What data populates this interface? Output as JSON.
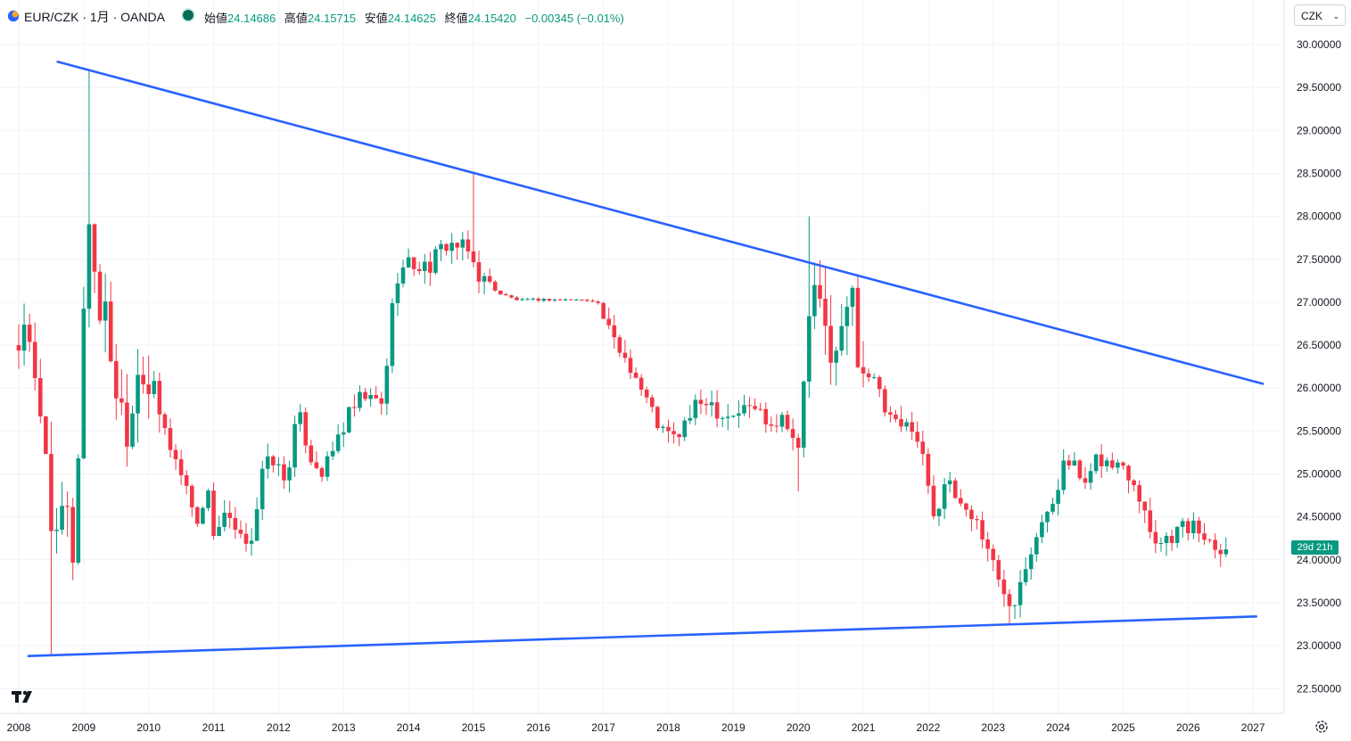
{
  "header": {
    "symbol": "EUR/CZK · 1月 · OANDA",
    "open_label": "始値",
    "open_value": "24.14686",
    "high_label": "高値",
    "high_value": "24.15715",
    "low_label": "安値",
    "low_value": "24.14625",
    "close_label": "終値",
    "close_value": "24.15420",
    "change": "−0.00345 (−0.01%)"
  },
  "currency": "CZK",
  "countdown": "29d 21h",
  "colors": {
    "up": "#089981",
    "down": "#f23645",
    "trendline": "#2962ff",
    "grid": "#f0f3fa"
  },
  "chart_data": {
    "type": "candlestick",
    "interval": "1M",
    "ylim": [
      22.2,
      30.2
    ],
    "y_ticks": [
      "22.50000",
      "23.00000",
      "23.50000",
      "24.00000",
      "24.50000",
      "25.00000",
      "25.50000",
      "26.00000",
      "26.50000",
      "27.00000",
      "27.50000",
      "28.00000",
      "28.50000",
      "29.00000",
      "29.50000",
      "30.00000"
    ],
    "x_ticks": [
      "2008",
      "2009",
      "2010",
      "2011",
      "2012",
      "2013",
      "2014",
      "2015",
      "2016",
      "2017",
      "2018",
      "2019",
      "2020",
      "2021",
      "2022",
      "2023",
      "2024",
      "2025",
      "2026",
      "2027"
    ],
    "anchors": [
      {
        "t": 2008.0,
        "v": 26.5
      },
      {
        "t": 2008.05,
        "v": 27.0
      },
      {
        "t": 2008.2,
        "v": 26.2
      },
      {
        "t": 2008.3,
        "v": 25.7
      },
      {
        "t": 2008.45,
        "v": 25.2
      },
      {
        "t": 2008.55,
        "v": 23.9
      },
      {
        "t": 2008.7,
        "v": 24.7
      },
      {
        "t": 2008.85,
        "v": 24.0
      },
      {
        "t": 2009.0,
        "v": 26.9
      },
      {
        "t": 2009.1,
        "v": 28.2
      },
      {
        "t": 2009.2,
        "v": 27.0
      },
      {
        "t": 2009.35,
        "v": 26.8
      },
      {
        "t": 2009.5,
        "v": 26.0
      },
      {
        "t": 2009.7,
        "v": 25.5
      },
      {
        "t": 2009.85,
        "v": 26.4
      },
      {
        "t": 2010.0,
        "v": 26.0
      },
      {
        "t": 2010.2,
        "v": 25.6
      },
      {
        "t": 2010.4,
        "v": 25.2
      },
      {
        "t": 2010.6,
        "v": 24.8
      },
      {
        "t": 2010.8,
        "v": 24.4
      },
      {
        "t": 2010.95,
        "v": 25.0
      },
      {
        "t": 2011.0,
        "v": 24.3
      },
      {
        "t": 2011.2,
        "v": 24.5
      },
      {
        "t": 2011.4,
        "v": 24.2
      },
      {
        "t": 2011.6,
        "v": 24.3
      },
      {
        "t": 2011.75,
        "v": 25.0
      },
      {
        "t": 2011.9,
        "v": 25.2
      },
      {
        "t": 2012.1,
        "v": 24.9
      },
      {
        "t": 2012.3,
        "v": 25.7
      },
      {
        "t": 2012.5,
        "v": 25.2
      },
      {
        "t": 2012.7,
        "v": 25.0
      },
      {
        "t": 2012.9,
        "v": 25.4
      },
      {
        "t": 2013.1,
        "v": 25.7
      },
      {
        "t": 2013.3,
        "v": 25.9
      },
      {
        "t": 2013.6,
        "v": 25.8
      },
      {
        "t": 2013.8,
        "v": 27.3
      },
      {
        "t": 2014.0,
        "v": 27.45
      },
      {
        "t": 2014.3,
        "v": 27.4
      },
      {
        "t": 2014.6,
        "v": 27.7
      },
      {
        "t": 2014.9,
        "v": 27.6
      },
      {
        "t": 2015.1,
        "v": 27.3
      },
      {
        "t": 2015.4,
        "v": 27.1
      },
      {
        "t": 2015.7,
        "v": 27.02
      },
      {
        "t": 2016.0,
        "v": 27.03
      },
      {
        "t": 2016.5,
        "v": 27.03
      },
      {
        "t": 2016.9,
        "v": 27.02
      },
      {
        "t": 2017.1,
        "v": 26.6
      },
      {
        "t": 2017.4,
        "v": 26.3
      },
      {
        "t": 2017.7,
        "v": 25.8
      },
      {
        "t": 2017.9,
        "v": 25.5
      },
      {
        "t": 2018.1,
        "v": 25.4
      },
      {
        "t": 2018.35,
        "v": 25.7
      },
      {
        "t": 2018.6,
        "v": 25.9
      },
      {
        "t": 2018.8,
        "v": 25.7
      },
      {
        "t": 2019.0,
        "v": 25.7
      },
      {
        "t": 2019.3,
        "v": 25.8
      },
      {
        "t": 2019.6,
        "v": 25.6
      },
      {
        "t": 2019.8,
        "v": 25.7
      },
      {
        "t": 2020.0,
        "v": 25.25
      },
      {
        "t": 2020.2,
        "v": 27.2
      },
      {
        "t": 2020.35,
        "v": 26.8
      },
      {
        "t": 2020.6,
        "v": 26.3
      },
      {
        "t": 2020.8,
        "v": 27.2
      },
      {
        "t": 2020.95,
        "v": 26.3
      },
      {
        "t": 2021.15,
        "v": 26.1
      },
      {
        "t": 2021.35,
        "v": 25.7
      },
      {
        "t": 2021.55,
        "v": 25.5
      },
      {
        "t": 2021.75,
        "v": 25.6
      },
      {
        "t": 2021.95,
        "v": 25.1
      },
      {
        "t": 2022.1,
        "v": 24.5
      },
      {
        "t": 2022.25,
        "v": 24.9
      },
      {
        "t": 2022.45,
        "v": 24.7
      },
      {
        "t": 2022.7,
        "v": 24.5
      },
      {
        "t": 2022.9,
        "v": 24.2
      },
      {
        "t": 2023.1,
        "v": 23.7
      },
      {
        "t": 2023.3,
        "v": 23.5
      },
      {
        "t": 2023.55,
        "v": 24.1
      },
      {
        "t": 2023.75,
        "v": 24.5
      },
      {
        "t": 2023.95,
        "v": 24.6
      },
      {
        "t": 2024.1,
        "v": 25.3
      },
      {
        "t": 2024.3,
        "v": 25.0
      },
      {
        "t": 2024.45,
        "v": 24.8
      },
      {
        "t": 2024.6,
        "v": 25.2
      },
      {
        "t": 2024.8,
        "v": 25.1
      },
      {
        "t": 2025.0,
        "v": 25.1
      },
      {
        "t": 2025.2,
        "v": 24.9
      },
      {
        "t": 2025.4,
        "v": 24.4
      },
      {
        "t": 2025.55,
        "v": 24.2
      },
      {
        "t": 2025.75,
        "v": 24.3
      },
      {
        "t": 2025.95,
        "v": 24.4
      },
      {
        "t": 2026.15,
        "v": 24.35
      },
      {
        "t": 2026.4,
        "v": 24.2
      },
      {
        "t": 2026.6,
        "v": 24.15
      }
    ],
    "spikes": [
      {
        "t": 2009.05,
        "high": 29.7
      },
      {
        "t": 2015.0,
        "high": 28.5
      },
      {
        "t": 2020.2,
        "high": 28.0
      },
      {
        "t": 2008.5,
        "low": 22.9
      },
      {
        "t": 2023.25,
        "low": 23.25
      },
      {
        "t": 2020.0,
        "low": 24.8
      }
    ],
    "trendlines": [
      {
        "name": "upper",
        "t1": 2008.6,
        "v1": 29.8,
        "t2": 2027.15,
        "v2": 26.05
      },
      {
        "name": "lower",
        "t1": 2008.15,
        "v1": 22.88,
        "t2": 2027.05,
        "v2": 23.34
      }
    ]
  }
}
